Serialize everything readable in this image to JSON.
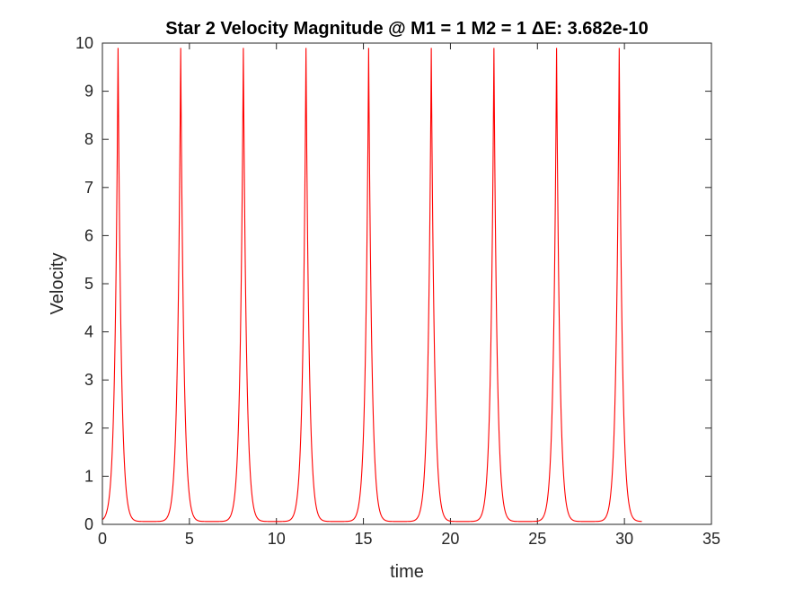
{
  "chart_data": {
    "type": "line",
    "title": "Star 2 Velocity Magnitude @ M1 = 1 M2 = 1 ΔE: 3.682e-10",
    "xlabel": "time",
    "ylabel": "Velocity",
    "xlim": [
      0,
      35
    ],
    "ylim": [
      0,
      10
    ],
    "xticks": [
      "0",
      "5",
      "10",
      "15",
      "20",
      "25",
      "30",
      "35"
    ],
    "yticks": [
      "0",
      "1",
      "2",
      "3",
      "4",
      "5",
      "6",
      "7",
      "8",
      "9",
      "10"
    ],
    "grid": false,
    "line_color": "#ff0000",
    "series": [
      {
        "x_start": 0,
        "x_end": 31,
        "period": 3.6,
        "first_peak_x": 0.9,
        "peak_y": 9.9,
        "min_y": 0.06,
        "peak_x": [
          0.9,
          4.5,
          8.1,
          11.7,
          15.3,
          18.9,
          22.5,
          26.1,
          29.7
        ],
        "min_x": [
          2.7,
          6.3,
          9.9,
          13.5,
          17.1,
          20.7,
          24.3,
          27.9
        ],
        "start_y": 0.37,
        "end_y": 0.13
      }
    ]
  }
}
